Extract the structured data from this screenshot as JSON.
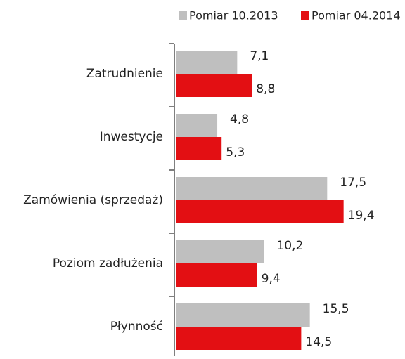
{
  "chart_data": {
    "type": "bar",
    "orientation": "horizontal",
    "categories": [
      "Zatrudnienie",
      "Inwestycje",
      "Zamówienia (sprzedaż)",
      "Poziom zadłużenia",
      "Płynność"
    ],
    "series": [
      {
        "name": "Pomiar 10.2013",
        "color": "#bfbfbf",
        "values": [
          7.1,
          4.8,
          17.5,
          10.2,
          15.5
        ],
        "value_labels": [
          "7,1",
          "4,8",
          "17,5",
          "10,2",
          "15,5"
        ]
      },
      {
        "name": "Pomiar 04.2014",
        "color": "#e30f13",
        "values": [
          8.8,
          5.3,
          19.4,
          9.4,
          14.5
        ],
        "value_labels": [
          "8,8",
          "5,3",
          "19,4",
          "9,4",
          "14,5"
        ]
      }
    ],
    "xlim": [
      0,
      26.5
    ],
    "legend": "top"
  }
}
